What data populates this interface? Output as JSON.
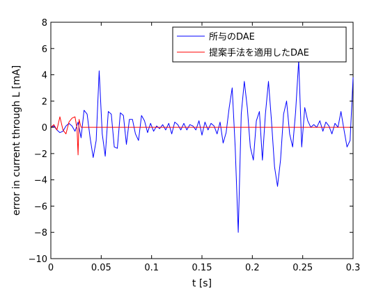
{
  "chart_data": {
    "type": "line",
    "xlabel": "t [s]",
    "ylabel": "error in current through L [mA]",
    "xlim": [
      0,
      0.3
    ],
    "ylim": [
      -10,
      8
    ],
    "xticks": [
      0,
      0.05,
      0.1,
      0.15,
      0.2,
      0.25,
      0.3
    ],
    "xtick_labels": [
      "0",
      "0.05",
      "0.1",
      "0.15",
      "0.2",
      "0.25",
      "0.3"
    ],
    "yticks": [
      -10,
      -8,
      -6,
      -4,
      -2,
      0,
      2,
      4,
      6,
      8
    ],
    "ytick_labels": [
      "−10",
      "−8",
      "−6",
      "−4",
      "−2",
      "0",
      "2",
      "4",
      "6",
      "8"
    ],
    "grid": false,
    "legend_position": "top-right",
    "series": [
      {
        "name": "所与のDAE",
        "color": "#0000ff",
        "x": [
          0,
          0.003,
          0.006,
          0.009,
          0.012,
          0.015,
          0.018,
          0.021,
          0.024,
          0.027,
          0.03,
          0.033,
          0.036,
          0.039,
          0.042,
          0.045,
          0.048,
          0.051,
          0.054,
          0.057,
          0.06,
          0.063,
          0.066,
          0.069,
          0.072,
          0.075,
          0.078,
          0.081,
          0.084,
          0.087,
          0.09,
          0.093,
          0.096,
          0.099,
          0.102,
          0.105,
          0.108,
          0.111,
          0.114,
          0.117,
          0.12,
          0.123,
          0.126,
          0.129,
          0.132,
          0.135,
          0.138,
          0.141,
          0.144,
          0.147,
          0.15,
          0.153,
          0.156,
          0.159,
          0.162,
          0.165,
          0.168,
          0.171,
          0.174,
          0.177,
          0.18,
          0.183,
          0.186,
          0.189,
          0.192,
          0.195,
          0.198,
          0.201,
          0.204,
          0.207,
          0.21,
          0.213,
          0.216,
          0.219,
          0.222,
          0.225,
          0.228,
          0.231,
          0.234,
          0.237,
          0.24,
          0.243,
          0.246,
          0.249,
          0.252,
          0.255,
          0.258,
          0.261,
          0.264,
          0.267,
          0.27,
          0.273,
          0.276,
          0.279,
          0.282,
          0.285,
          0.288,
          0.291,
          0.294,
          0.297,
          0.3
        ],
        "y": [
          0,
          0.1,
          -0.2,
          -0.4,
          -0.3,
          0.1,
          0.3,
          0.1,
          -0.3,
          0.4,
          -0.8,
          1.3,
          1.0,
          -0.8,
          -2.3,
          -1.0,
          4.3,
          -0.5,
          -2.2,
          1.2,
          1.0,
          -1.5,
          -1.6,
          1.1,
          0.9,
          -1.3,
          0.6,
          0.6,
          -0.5,
          -1.0,
          0.9,
          0.5,
          -0.4,
          0.3,
          -0.3,
          0.1,
          -0.1,
          0.2,
          -0.2,
          0.3,
          -0.5,
          0.4,
          0.2,
          -0.2,
          0.3,
          -0.2,
          0.2,
          0.1,
          -0.2,
          0.5,
          -0.6,
          0.4,
          -0.2,
          0.3,
          0.1,
          -0.5,
          0.4,
          -1.2,
          -0.4,
          1.5,
          3.0,
          -1.5,
          -8.0,
          1.0,
          3.5,
          1.5,
          -1.5,
          -2.5,
          0.5,
          1.2,
          -2.5,
          1.0,
          3.5,
          0.5,
          -3.0,
          -4.5,
          -2.5,
          1.0,
          2.0,
          -0.5,
          -1.5,
          1.2,
          5.1,
          -1.5,
          1.5,
          0.5,
          0.0,
          0.2,
          0.0,
          0.5,
          -0.3,
          0.4,
          0.1,
          -0.5,
          0.3,
          0.0,
          1.2,
          -0.2,
          -1.5,
          -1.0,
          3.8
        ]
      },
      {
        "name": "提案手法を適用したDAE",
        "color": "#ff0000",
        "x": [
          0,
          0.003,
          0.006,
          0.009,
          0.012,
          0.015,
          0.018,
          0.021,
          0.024,
          0.026,
          0.027,
          0.028,
          0.03,
          0.04,
          0.1,
          0.2,
          0.3
        ],
        "y": [
          0,
          0.2,
          -0.2,
          0.8,
          -0.2,
          -0.5,
          0.4,
          0.7,
          0.8,
          -0.1,
          -2.1,
          0.6,
          0.0,
          0.0,
          0.0,
          0.0,
          0.0
        ]
      }
    ]
  }
}
